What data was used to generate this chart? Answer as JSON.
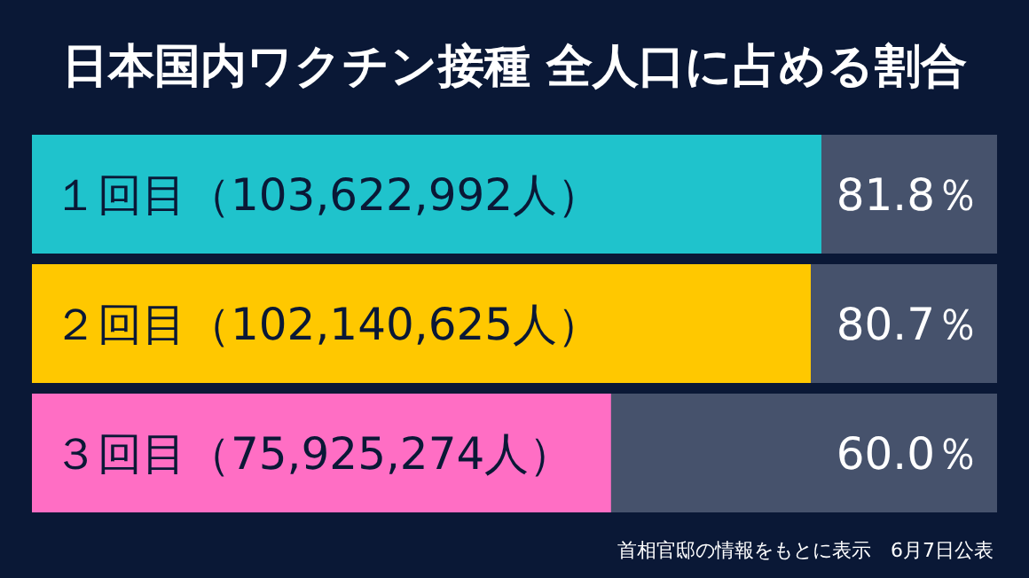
{
  "chart_data": {
    "type": "bar",
    "orientation": "horizontal",
    "title": "日本国内ワクチン接種 全人口に占める割合",
    "categories": [
      "１回目（103,622,992人）",
      "２回目（102,140,625人）",
      "３回目（75,925,274人）"
    ],
    "values": [
      81.8,
      80.7,
      60.0
    ],
    "value_labels": [
      "81.8％",
      "80.7％",
      "60.0％"
    ],
    "colors": [
      "#1fc3cc",
      "#ffc800",
      "#ff6ec4"
    ],
    "xlim": [
      0,
      100
    ],
    "annotations": [
      "首相官邸の情報をもとに表示　6月7日公表"
    ]
  }
}
